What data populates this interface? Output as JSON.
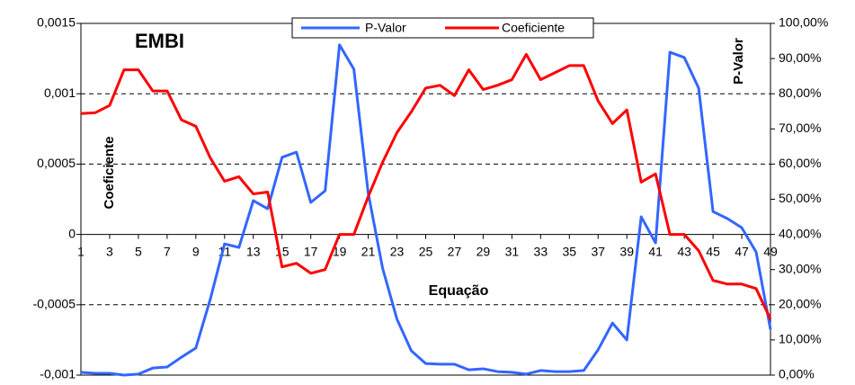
{
  "chart_data": {
    "type": "line",
    "title": "EMBI",
    "xlabel": "Equação",
    "ylabel": "Coeficiente",
    "y2label": "P-Valor",
    "x": [
      1,
      2,
      3,
      4,
      5,
      6,
      7,
      8,
      9,
      10,
      11,
      12,
      13,
      14,
      15,
      16,
      17,
      18,
      19,
      20,
      21,
      22,
      23,
      24,
      25,
      26,
      27,
      28,
      29,
      30,
      31,
      32,
      33,
      34,
      35,
      36,
      37,
      38,
      39,
      40,
      41,
      42,
      43,
      44,
      45,
      46,
      47,
      48,
      49
    ],
    "xlim": [
      1,
      49
    ],
    "xticks": [
      1,
      3,
      5,
      7,
      9,
      11,
      13,
      15,
      17,
      19,
      21,
      23,
      25,
      27,
      29,
      31,
      33,
      35,
      37,
      39,
      41,
      43,
      45,
      47,
      49
    ],
    "ylim": [
      -0.001,
      0.0015
    ],
    "yticks": [
      {
        "value": -0.001,
        "label": "-0,001"
      },
      {
        "value": -0.0005,
        "label": "-0,0005"
      },
      0,
      {
        "value": 0.0005,
        "label": "0,0005"
      },
      {
        "value": 0.001,
        "label": "0,001"
      },
      {
        "value": 0.0015,
        "label": "0,0015"
      }
    ],
    "y2lim": [
      0,
      100
    ],
    "y2ticks": [
      {
        "value": 0,
        "label": "0,00%"
      },
      {
        "value": 10,
        "label": "10,00%"
      },
      {
        "value": 20,
        "label": "20,00%"
      },
      {
        "value": 30,
        "label": "30,00%"
      },
      {
        "value": 40,
        "label": "40,00%"
      },
      {
        "value": 50,
        "label": "50,00%"
      },
      {
        "value": 60,
        "label": "60,00%"
      },
      {
        "value": 70,
        "label": "70,00%"
      },
      {
        "value": 80,
        "label": "80,00%"
      },
      {
        "value": 90,
        "label": "90,00%"
      },
      {
        "value": 100,
        "label": "100,00%"
      }
    ],
    "grid": true,
    "legend": "top",
    "series": [
      {
        "name": "P-Valor",
        "color": "#3366ff",
        "axis": "y2",
        "values": [
          0.8,
          0.5,
          0.5,
          0,
          0.3,
          2,
          2.3,
          5.1,
          7.7,
          21.5,
          37.3,
          36.3,
          49.6,
          47.3,
          61.9,
          63.4,
          49.1,
          52.4,
          93.9,
          87,
          51.7,
          30.4,
          15.9,
          6.9,
          3.3,
          3.1,
          3.1,
          1.5,
          1.8,
          1,
          0.8,
          0.3,
          1.3,
          1,
          1,
          1.3,
          7.2,
          14.8,
          10,
          45,
          37.6,
          91.8,
          90.3,
          81.6,
          46.5,
          44.5,
          41.9,
          35,
          13
        ]
      },
      {
        "name": "Coeficiente",
        "color": "#ff0000",
        "values": [
          0.000859,
          0.000865,
          0.000917,
          0.00117,
          0.00117,
          0.00102,
          0.00102,
          0.000814,
          0.000769,
          0.000545,
          0.000378,
          0.00041,
          0.000288,
          0.000301,
          -0.000231,
          -0.000205,
          -0.000276,
          -0.00025,
          0,
          0,
          0.000269,
          0.000513,
          0.000724,
          0.000872,
          0.00104,
          0.00106,
          0.000987,
          0.00117,
          0.00103,
          0.00106,
          0.0011,
          0.00128,
          0.0011,
          0.00115,
          0.0012,
          0.0012,
          0.000949,
          0.000788,
          0.000885,
          0.000372,
          0.00043,
          0,
          0,
          -0.000115,
          -0.000327,
          -0.000353,
          -0.000353,
          -0.000385,
          -0.000603
        ]
      }
    ]
  }
}
